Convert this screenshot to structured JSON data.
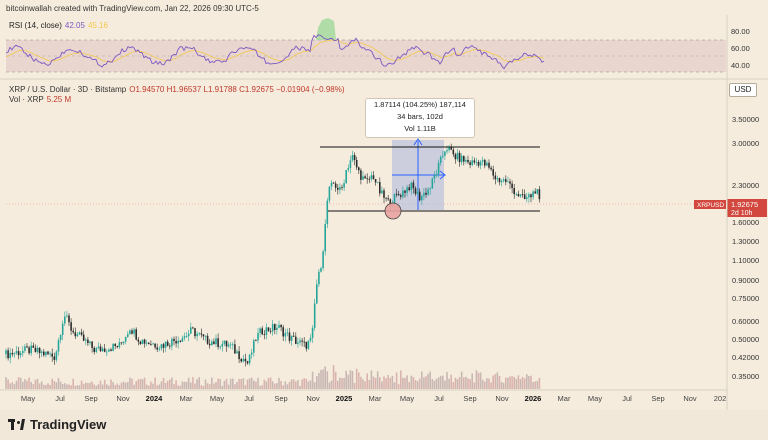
{
  "header": {
    "credit": "bitcoinwallah created with TradingView.com, Jan 22, 2026 09:30 UTC-5"
  },
  "rsi": {
    "label": "RSI (14, close)",
    "value": "42.05",
    "ma_value": "45.16",
    "scale": [
      "80.00",
      "60.00",
      "40.00"
    ]
  },
  "symbol": {
    "title": "XRP / U.S. Dollar · 3D · Bitstamp",
    "ohlc": "O1.94570 H1.96537 L1.91788 C1.92675 −0.01904 (−0.98%)"
  },
  "volume": {
    "label": "Vol · XRP",
    "value": "5.25 M"
  },
  "currency_button": "USD",
  "price_tag": {
    "symbol": "XRPUSD",
    "price": "1.92675",
    "countdown": "2d 10h",
    "color": "#d2483e"
  },
  "measure": {
    "line1": "1.87114 (104.25%) 187,114",
    "line2": "34 bars, 102d",
    "line3": "Vol 1.11B",
    "color": "#2962ff"
  },
  "brand": "TradingView",
  "chart_data": {
    "type": "candlestick",
    "price_axis": {
      "scale": "log",
      "ticks": [
        "3.50000",
        "3.00000",
        "2.30000",
        "1.60000",
        "1.30000",
        "1.10000",
        "0.90000",
        "0.75000",
        "0.60000",
        "0.50000",
        "0.42000",
        "0.35000"
      ]
    },
    "time_axis": [
      "May",
      "Jul",
      "Sep",
      "Nov",
      "2024",
      "Mar",
      "May",
      "Jul",
      "Sep",
      "Nov",
      "2025",
      "Mar",
      "May",
      "Jul",
      "Sep",
      "Nov",
      "2026",
      "Mar",
      "May",
      "Jul",
      "Sep",
      "Nov",
      "202"
    ],
    "range_box": {
      "upper": 3.4,
      "lower": 1.85
    },
    "last_price": 1.92675,
    "colors": {
      "up": "#26a69a",
      "down": "#2b2b2b",
      "rsi": "#7e57c2",
      "rsi_ma": "#f2c94c"
    }
  }
}
